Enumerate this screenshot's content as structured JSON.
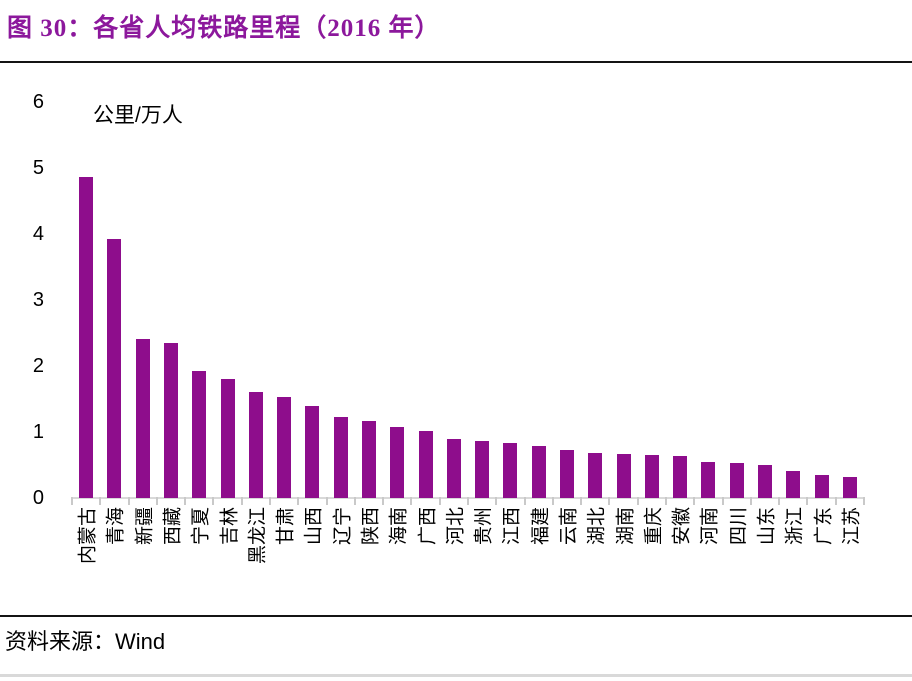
{
  "title": "图 30：各省人均铁路里程（2016 年）",
  "footer": {
    "source_label": "资料来源：",
    "source_value": "Wind"
  },
  "colors": {
    "title": "#8C189C",
    "bar": "#8E0D8C",
    "axis_line": "#D9D9D9",
    "tick": "#C9C9C9",
    "divider": "#141414",
    "bottom_border": "#D9D9D9",
    "text": "#000000"
  },
  "chart_data": {
    "type": "bar",
    "title": "各省人均铁路里程（2016 年）",
    "unit_label": "公里/万人",
    "xlabel": "",
    "ylabel": "公里/万人",
    "ylim": [
      0,
      6
    ],
    "yticks": [
      0,
      1,
      2,
      3,
      4,
      5,
      6
    ],
    "grid": false,
    "legend": "none",
    "bar_color": "#8E0D8C",
    "categories": [
      "内蒙古",
      "青海",
      "新疆",
      "西藏",
      "宁夏",
      "吉林",
      "黑龙江",
      "甘肃",
      "山西",
      "辽宁",
      "陕西",
      "海南",
      "广西",
      "河北",
      "贵州",
      "江西",
      "福建",
      "云南",
      "湖北",
      "湖南",
      "重庆",
      "安徽",
      "河南",
      "四川",
      "山东",
      "浙江",
      "广东",
      "江苏"
    ],
    "values": [
      4.87,
      3.92,
      2.41,
      2.35,
      1.93,
      1.81,
      1.6,
      1.53,
      1.39,
      1.22,
      1.17,
      1.08,
      1.02,
      0.9,
      0.87,
      0.84,
      0.79,
      0.73,
      0.68,
      0.66,
      0.65,
      0.64,
      0.55,
      0.53,
      0.5,
      0.41,
      0.35,
      0.32
    ]
  }
}
